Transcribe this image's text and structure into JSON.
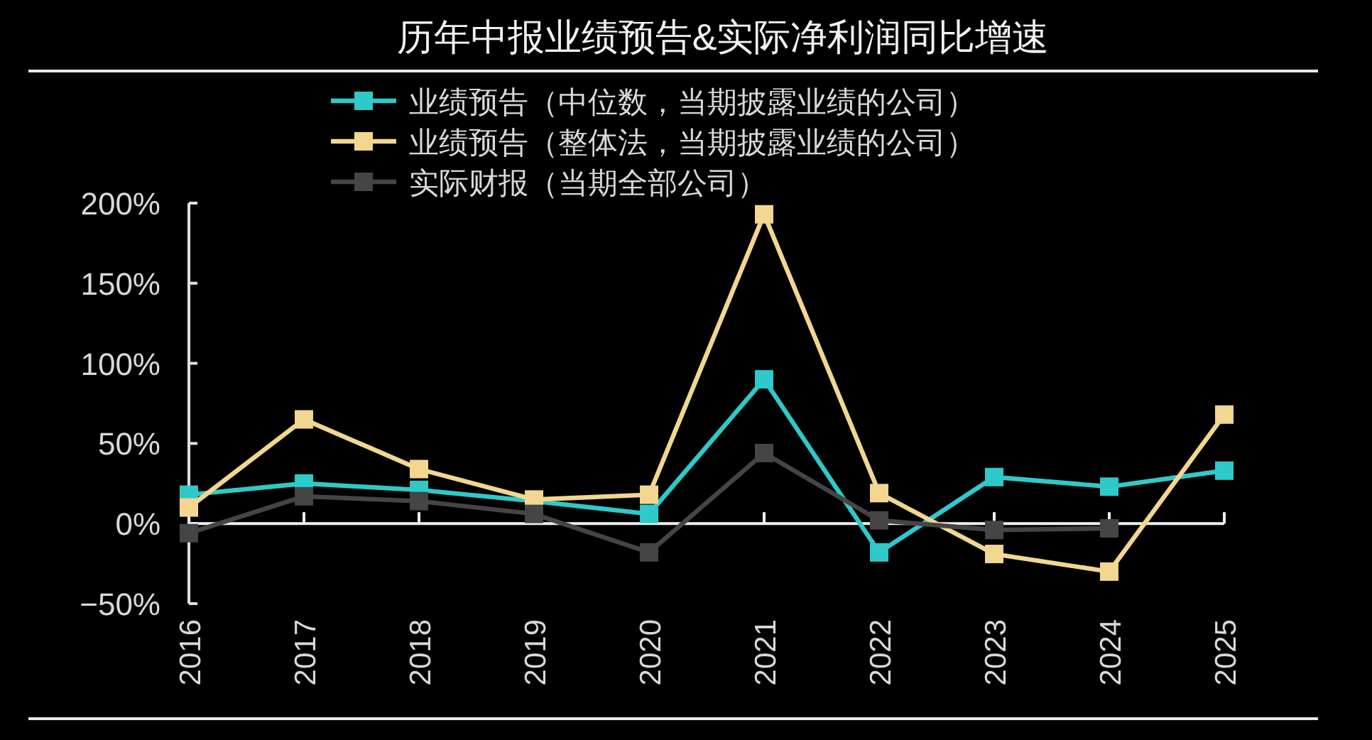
{
  "chart_data": {
    "type": "line",
    "title": "历年中报业绩预告&实际净利润同比增速",
    "categories": [
      "2016",
      "2017",
      "2018",
      "2019",
      "2020",
      "2021",
      "2022",
      "2023",
      "2024",
      "2025"
    ],
    "series": [
      {
        "name": "业绩预告（中位数，当期披露业绩的公司）",
        "color": "#2fc9c9",
        "values": [
          18,
          25,
          21,
          14,
          6,
          90,
          -18,
          29,
          23,
          33
        ]
      },
      {
        "name": "业绩预告（整体法，当期披露业绩的公司）",
        "color": "#f3d68f",
        "values": [
          10,
          65,
          34,
          15,
          18,
          193,
          19,
          -19,
          -30,
          68
        ]
      },
      {
        "name": "实际财报（当期全部公司）",
        "color": "#454545",
        "values": [
          -6,
          17,
          14,
          6,
          -18,
          44,
          2,
          -4,
          -3,
          null
        ]
      }
    ],
    "ylim": [
      -50,
      200
    ],
    "yticks": [
      {
        "value": -50,
        "label": "−50%"
      },
      {
        "value": 0,
        "label": "0%"
      },
      {
        "value": 50,
        "label": "50%"
      },
      {
        "value": 100,
        "label": "100%"
      },
      {
        "value": 150,
        "label": "150%"
      },
      {
        "value": 200,
        "label": "200%"
      }
    ],
    "legend": "top",
    "marker": "square",
    "line_style": "solid"
  }
}
